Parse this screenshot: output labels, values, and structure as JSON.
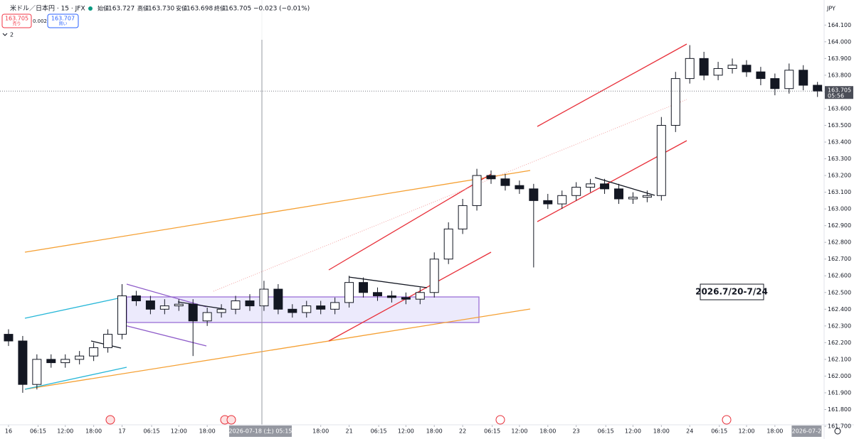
{
  "header": {
    "symbol": "米ドル／日本円 · 15 · JFX",
    "ohlc": [
      {
        "label": "始値",
        "value": "163.727"
      },
      {
        "label": "高値",
        "value": "163.730"
      },
      {
        "label": "安値",
        "value": "163.698"
      },
      {
        "label": "終値",
        "value": "163.705"
      }
    ],
    "change": "−0.023 (−0.01%)"
  },
  "trade_panel": {
    "sell_price": "163.705",
    "sell_label": "売り",
    "spread": "0.002",
    "buy_price": "163.707",
    "buy_label": "買い"
  },
  "indicator_count": "2",
  "currency": "JPY",
  "chart_data": {
    "type": "candlestick",
    "x": [
      0,
      3,
      6,
      9,
      12,
      15,
      18,
      21,
      24,
      27,
      30,
      33,
      36,
      39,
      42,
      45,
      48,
      51,
      54,
      57,
      60,
      63,
      66,
      69,
      72,
      75,
      78,
      81,
      84,
      87,
      90,
      93,
      96,
      99,
      102,
      105,
      108,
      111,
      114,
      117,
      120,
      123,
      126,
      129,
      132,
      135,
      138,
      141,
      144,
      147,
      150,
      153,
      156,
      159,
      162,
      165,
      168,
      171
    ],
    "open": [
      162.25,
      162.21,
      161.95,
      162.1,
      162.08,
      162.1,
      162.12,
      162.17,
      162.25,
      162.48,
      162.45,
      162.4,
      162.42,
      162.43,
      162.33,
      162.38,
      162.4,
      162.45,
      162.42,
      162.52,
      162.4,
      162.38,
      162.42,
      162.4,
      162.44,
      162.56,
      162.5,
      162.48,
      162.47,
      162.46,
      162.5,
      162.7,
      162.88,
      163.02,
      163.2,
      163.18,
      163.14,
      163.12,
      163.05,
      163.03,
      163.08,
      163.13,
      163.15,
      163.12,
      163.06,
      163.07,
      163.08,
      163.5,
      163.78,
      163.9,
      163.8,
      163.84,
      163.86,
      163.82,
      163.78,
      163.72,
      163.83,
      163.74
    ],
    "high": [
      162.28,
      162.24,
      162.13,
      162.13,
      162.13,
      162.15,
      162.2,
      162.28,
      162.55,
      162.51,
      162.48,
      162.46,
      162.46,
      162.46,
      162.41,
      162.43,
      162.48,
      162.49,
      162.57,
      162.55,
      162.43,
      162.45,
      162.45,
      162.47,
      162.6,
      162.59,
      162.53,
      162.51,
      162.5,
      162.53,
      162.74,
      162.92,
      163.06,
      163.24,
      163.23,
      163.21,
      163.17,
      163.15,
      163.09,
      163.11,
      163.16,
      163.18,
      163.18,
      163.15,
      163.1,
      163.11,
      163.55,
      163.82,
      163.98,
      163.94,
      163.88,
      163.9,
      163.89,
      163.85,
      163.81,
      163.87,
      163.86,
      163.76
    ],
    "low": [
      162.18,
      161.9,
      161.92,
      162.05,
      162.05,
      162.07,
      162.09,
      162.14,
      162.22,
      162.42,
      162.37,
      162.37,
      162.39,
      162.12,
      162.3,
      162.35,
      162.37,
      162.39,
      162.39,
      162.37,
      162.35,
      162.35,
      162.37,
      162.37,
      162.41,
      162.47,
      162.45,
      162.44,
      162.43,
      162.43,
      162.47,
      162.67,
      162.85,
      162.99,
      163.15,
      163.11,
      163.09,
      162.65,
      163.0,
      163.0,
      163.05,
      163.1,
      163.09,
      163.03,
      163.03,
      163.04,
      163.05,
      163.46,
      163.75,
      163.77,
      163.77,
      163.81,
      163.79,
      163.74,
      163.68,
      163.69,
      163.71,
      163.67
    ],
    "close": [
      162.21,
      161.95,
      162.1,
      162.08,
      162.1,
      162.12,
      162.17,
      162.25,
      162.48,
      162.45,
      162.4,
      162.42,
      162.43,
      162.33,
      162.38,
      162.4,
      162.45,
      162.42,
      162.52,
      162.4,
      162.38,
      162.42,
      162.4,
      162.44,
      162.56,
      162.5,
      162.48,
      162.47,
      162.46,
      162.5,
      162.7,
      162.88,
      163.02,
      163.2,
      163.18,
      163.14,
      163.12,
      163.05,
      163.03,
      163.08,
      163.13,
      163.15,
      163.12,
      163.06,
      163.07,
      163.08,
      163.5,
      163.78,
      163.9,
      163.8,
      163.84,
      163.86,
      163.82,
      163.78,
      163.72,
      163.83,
      163.74,
      163.705
    ],
    "up_color": "#ffffff",
    "down_color": "#131722",
    "xlim": [
      -1.8,
      172.4
    ],
    "xticks": [
      {
        "value": 0,
        "label": "16"
      },
      {
        "value": 6.25,
        "label": "06:15"
      },
      {
        "value": 12,
        "label": "12:00"
      },
      {
        "value": 18,
        "label": "18:00"
      },
      {
        "value": 24,
        "label": "17"
      },
      {
        "value": 30.25,
        "label": "06:15"
      },
      {
        "value": 36,
        "label": "12:00"
      },
      {
        "value": 42,
        "label": "18:00"
      },
      {
        "value": 66,
        "label": "18:00"
      },
      {
        "value": 72,
        "label": "21"
      },
      {
        "value": 78.25,
        "label": "06:15"
      },
      {
        "value": 84,
        "label": "12:00"
      },
      {
        "value": 90,
        "label": "18:00"
      },
      {
        "value": 96,
        "label": "22"
      },
      {
        "value": 102.25,
        "label": "06:15"
      },
      {
        "value": 108,
        "label": "12:00"
      },
      {
        "value": 114,
        "label": "18:00"
      },
      {
        "value": 120,
        "label": "23"
      },
      {
        "value": 126.25,
        "label": "06:15"
      },
      {
        "value": 132,
        "label": "12:00"
      },
      {
        "value": 138,
        "label": "18:00"
      },
      {
        "value": 144,
        "label": "24"
      },
      {
        "value": 150.25,
        "label": "06:15"
      },
      {
        "value": 156,
        "label": "12:00"
      },
      {
        "value": 162,
        "label": "18:00"
      }
    ],
    "crosshair": {
      "value": 53.25,
      "label": "2026-07-18 (土)  05:15"
    },
    "end_label": {
      "value": 168.7,
      "label": "2026-07-2"
    },
    "ylim": [
      161.7,
      164.25
    ],
    "yticks": [
      {
        "value": 161.7,
        "label": "161.700"
      },
      {
        "value": 161.8,
        "label": "161.800"
      },
      {
        "value": 161.9,
        "label": "161.900"
      },
      {
        "value": 162.0,
        "label": "162.000"
      },
      {
        "value": 162.1,
        "label": "162.100"
      },
      {
        "value": 162.2,
        "label": "162.200"
      },
      {
        "value": 162.3,
        "label": "162.300"
      },
      {
        "value": 162.4,
        "label": "162.400"
      },
      {
        "value": 162.5,
        "label": "162.500"
      },
      {
        "value": 162.6,
        "label": "162.600"
      },
      {
        "value": 162.7,
        "label": "162.700"
      },
      {
        "value": 162.8,
        "label": "162.800"
      },
      {
        "value": 162.9,
        "label": "162.900"
      },
      {
        "value": 163.0,
        "label": "163.000"
      },
      {
        "value": 163.1,
        "label": "163.100"
      },
      {
        "value": 163.2,
        "label": "163.200"
      },
      {
        "value": 163.3,
        "label": "163.300"
      },
      {
        "value": 163.4,
        "label": "163.400"
      },
      {
        "value": 163.5,
        "label": "163.500"
      },
      {
        "value": 163.6,
        "label": "163.600"
      },
      {
        "value": 163.7,
        "label": "163.700"
      },
      {
        "value": 163.8,
        "label": "163.800"
      },
      {
        "value": 163.9,
        "label": "163.900"
      },
      {
        "value": 164.0,
        "label": "164.000"
      },
      {
        "value": 164.1,
        "label": "164.100"
      }
    ],
    "last_price": 163.705,
    "countdown": "05:56",
    "annotation": "2026.7/20-7/24"
  }
}
